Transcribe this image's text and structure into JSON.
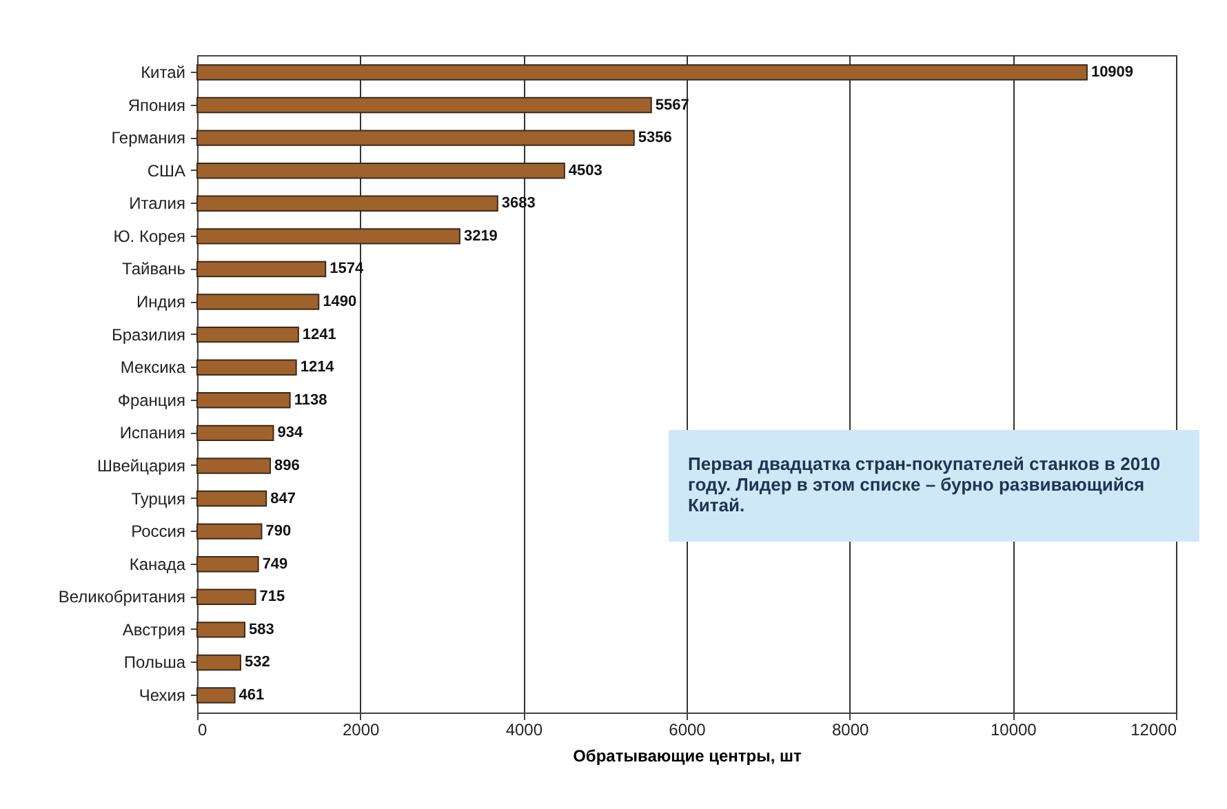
{
  "chart_data": {
    "type": "bar",
    "orientation": "horizontal",
    "xlabel": "Обратывающие центры, шт",
    "categories": [
      "Китай",
      "Япония",
      "Германия",
      "США",
      "Италия",
      "Ю. Корея",
      "Тайвань",
      "Индия",
      "Бразилия",
      "Мексика",
      "Франция",
      "Испания",
      "Швейцария",
      "Турция",
      "Россия",
      "Канада",
      "Великобритания",
      "Австрия",
      "Польша",
      "Чехия"
    ],
    "values": [
      10909,
      5567,
      5356,
      4503,
      3683,
      3219,
      1574,
      1490,
      1241,
      1214,
      1138,
      934,
      896,
      847,
      790,
      749,
      715,
      583,
      532,
      461
    ],
    "color": "#a0622c",
    "xlim": [
      0,
      12000
    ],
    "xticks": [
      0,
      2000,
      4000,
      6000,
      8000,
      10000,
      12000
    ],
    "grid": "x",
    "data_labels": true,
    "annotations": [
      "Первая двадцатка стран-покупателей станков в 2010 году. Лидер в этом списке – бурно развивающийся Китай."
    ]
  }
}
